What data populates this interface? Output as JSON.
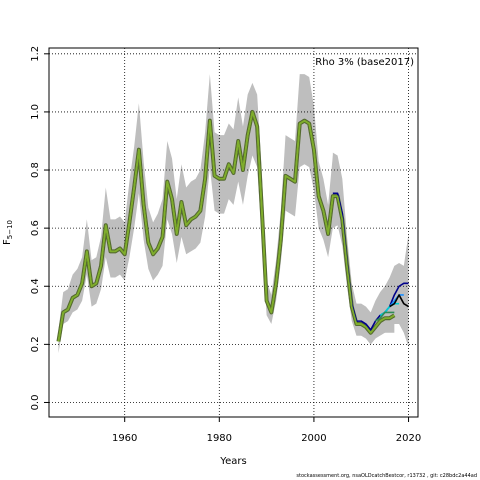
{
  "chart_data": {
    "type": "line",
    "title": "",
    "legend_text": "Rho 3% (base2017)",
    "legend_position": "top-right",
    "xlabel": "Years",
    "ylabel": "F",
    "ylabel_subscript": "5−10",
    "xlim": [
      1944,
      2022
    ],
    "ylim": [
      -0.05,
      1.22
    ],
    "xticks": [
      1960,
      1980,
      2000,
      2020
    ],
    "yticks": [
      0.0,
      0.2,
      0.4,
      0.6,
      0.8,
      1.0,
      1.2
    ],
    "ytick_labels": [
      "0.0",
      "0.2",
      "0.4",
      "0.6",
      "0.8",
      "1.0",
      "1.2"
    ],
    "grid": "dotted",
    "colors": {
      "band": "#bebebe",
      "base_line": "#6b8e23",
      "base_outline": "#556b2f",
      "peel_1": "#00008b",
      "peel_2": "#1e90ff",
      "peel_3": "#00ced1",
      "peel_4": "#2e8b57",
      "peel_5": "#000000"
    },
    "series": [
      {
        "x": [
          1946,
          1947,
          1948,
          1949,
          1950,
          1951,
          1952,
          1953,
          1954,
          1955,
          1956,
          1957,
          1958,
          1959,
          1960,
          1961,
          1962,
          1963,
          1964,
          1965,
          1966,
          1967,
          1968,
          1969,
          1970,
          1971,
          1972,
          1973,
          1974,
          1975,
          1976,
          1977,
          1978,
          1979,
          1980,
          1981,
          1982,
          1983,
          1984,
          1985,
          1986,
          1987,
          1988,
          1989,
          1990,
          1991,
          1992,
          1993,
          1994,
          1995,
          1996,
          1997,
          1998,
          1999,
          2000,
          2001,
          2002,
          2003,
          2004,
          2005,
          2006,
          2007,
          2008,
          2009,
          2010,
          2011,
          2012,
          2013,
          2014,
          2015,
          2016,
          2017
        ],
        "y": [
          0.21,
          0.31,
          0.32,
          0.36,
          0.37,
          0.41,
          0.52,
          0.4,
          0.41,
          0.47,
          0.61,
          0.52,
          0.52,
          0.53,
          0.51,
          0.62,
          0.74,
          0.87,
          0.68,
          0.55,
          0.51,
          0.53,
          0.57,
          0.76,
          0.7,
          0.58,
          0.69,
          0.61,
          0.63,
          0.64,
          0.66,
          0.77,
          0.97,
          0.78,
          0.77,
          0.77,
          0.82,
          0.79,
          0.9,
          0.8,
          0.92,
          1.0,
          0.95,
          0.66,
          0.35,
          0.31,
          0.41,
          0.56,
          0.78,
          0.77,
          0.76,
          0.96,
          0.97,
          0.96,
          0.87,
          0.71,
          0.66,
          0.58,
          0.71,
          0.71,
          0.63,
          0.47,
          0.33,
          0.27,
          0.27,
          0.26,
          0.24,
          0.26,
          0.28,
          0.29,
          0.29,
          0.3
        ],
        "band_low": [
          0.17,
          0.27,
          0.28,
          0.31,
          0.32,
          0.35,
          0.44,
          0.33,
          0.34,
          0.39,
          0.5,
          0.43,
          0.43,
          0.44,
          0.42,
          0.5,
          0.6,
          0.72,
          0.56,
          0.46,
          0.42,
          0.44,
          0.47,
          0.63,
          0.58,
          0.48,
          0.57,
          0.51,
          0.52,
          0.53,
          0.55,
          0.64,
          0.81,
          0.66,
          0.65,
          0.65,
          0.7,
          0.68,
          0.76,
          0.68,
          0.78,
          0.85,
          0.81,
          0.56,
          0.3,
          0.27,
          0.35,
          0.48,
          0.66,
          0.65,
          0.64,
          0.81,
          0.82,
          0.81,
          0.73,
          0.6,
          0.56,
          0.5,
          0.6,
          0.61,
          0.54,
          0.4,
          0.28,
          0.23,
          0.23,
          0.22,
          0.2,
          0.22,
          0.23,
          0.24,
          0.24,
          0.24
        ],
        "band_high": [
          0.25,
          0.38,
          0.39,
          0.44,
          0.46,
          0.5,
          0.63,
          0.49,
          0.5,
          0.57,
          0.74,
          0.63,
          0.63,
          0.64,
          0.62,
          0.76,
          0.88,
          1.03,
          0.83,
          0.67,
          0.62,
          0.65,
          0.7,
          0.9,
          0.84,
          0.7,
          0.82,
          0.74,
          0.76,
          0.77,
          0.8,
          0.93,
          1.13,
          0.93,
          0.92,
          0.92,
          0.96,
          0.94,
          1.05,
          0.95,
          1.06,
          1.1,
          1.06,
          0.79,
          0.42,
          0.37,
          0.49,
          0.66,
          0.92,
          0.91,
          0.9,
          1.13,
          1.13,
          1.12,
          1.02,
          0.83,
          0.77,
          0.68,
          0.85,
          0.84,
          0.75,
          0.56,
          0.4,
          0.32,
          0.32,
          0.31,
          0.29,
          0.31,
          0.33,
          0.35,
          0.36,
          0.37
        ]
      },
      {
        "x": [
          2004,
          2005,
          2006,
          2007,
          2008,
          2009,
          2010,
          2011,
          2012,
          2013,
          2014,
          2015,
          2016,
          2017,
          2018,
          2019,
          2020
        ],
        "y": [
          0.72,
          0.72,
          0.65,
          0.48,
          0.34,
          0.28,
          0.28,
          0.27,
          0.25,
          0.28,
          0.3,
          0.31,
          0.33,
          0.37,
          0.4,
          0.41,
          0.41
        ],
        "band_low": [
          0.61,
          0.61,
          0.55,
          0.4,
          0.29,
          0.23,
          0.23,
          0.22,
          0.2,
          0.22,
          0.24,
          0.24,
          0.25,
          0.27,
          0.27,
          0.24,
          0.19
        ],
        "band_high": [
          0.86,
          0.85,
          0.77,
          0.57,
          0.41,
          0.34,
          0.34,
          0.33,
          0.31,
          0.35,
          0.38,
          0.4,
          0.43,
          0.47,
          0.48,
          0.47,
          0.58
        ]
      },
      {
        "x": [
          2015,
          2016,
          2017,
          2018,
          2019
        ],
        "y": [
          0.31,
          0.33,
          0.35,
          0.37,
          0.37
        ]
      },
      {
        "x": [
          2014,
          2015,
          2016,
          2017,
          2018
        ],
        "y": [
          0.3,
          0.31,
          0.33,
          0.34,
          0.34
        ]
      },
      {
        "x": [
          2013,
          2014,
          2015,
          2016,
          2017
        ],
        "y": [
          0.28,
          0.29,
          0.31,
          0.31,
          0.31
        ]
      },
      {
        "x": [
          2016,
          2017,
          2018,
          2019,
          2020
        ],
        "y": [
          0.33,
          0.34,
          0.37,
          0.34,
          0.33
        ]
      }
    ]
  },
  "footer": {
    "note": "stockassessment.org, nsaOLDcatchBestcor, r13732 , git: c28bdc2a44ad"
  }
}
